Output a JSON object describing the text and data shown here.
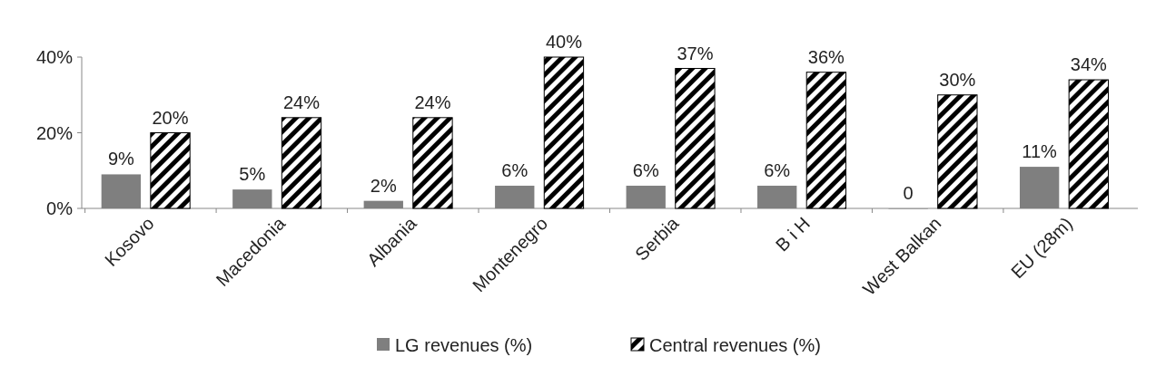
{
  "chart_data": {
    "type": "bar",
    "categories": [
      "Kosovo",
      "Macedonia",
      "Albania",
      "Montenegro",
      "Serbia",
      "B i H",
      "West Balkan",
      "EU (28m)"
    ],
    "series": [
      {
        "name": "LG revenues (%)",
        "color": "#7f7f7f",
        "values": [
          9,
          5,
          2,
          6,
          6,
          6,
          0,
          11
        ],
        "value_labels": [
          "9%",
          "5%",
          "2%",
          "6%",
          "6%",
          "6%",
          "0",
          "11%"
        ]
      },
      {
        "name": "Central  revenues (%)",
        "color": "#000000",
        "values": [
          20,
          24,
          24,
          40,
          37,
          36,
          30,
          34
        ],
        "value_labels": [
          "20%",
          "24%",
          "24%",
          "40%",
          "37%",
          "36%",
          "30%",
          "34%"
        ]
      }
    ],
    "ylim": [
      0,
      40
    ],
    "yticks": [
      {
        "value": 0,
        "label": "0%"
      },
      {
        "value": 20,
        "label": "20%"
      },
      {
        "value": 40,
        "label": "40%"
      }
    ],
    "grid": false,
    "legend": "bottom"
  }
}
